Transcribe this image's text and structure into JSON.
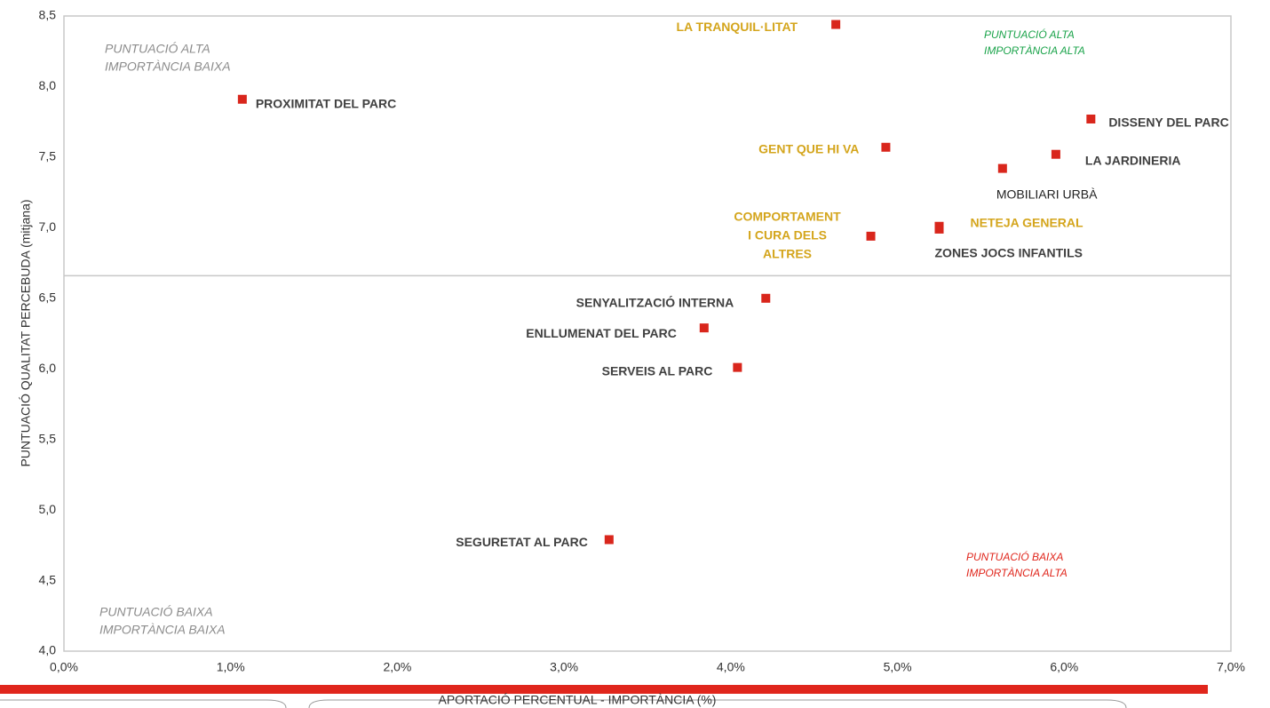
{
  "chart_data": {
    "type": "scatter",
    "x_label": "APORTACIÓ PERCENTUAL - IMPORTÀNCIA (%)",
    "y_label": "PUNTUACIÓ QUALITAT PERCEBUDA  (mitjana)",
    "color": "#d9261c",
    "x": [
      4.63,
      1.07,
      6.16,
      4.93,
      5.95,
      5.63,
      5.25,
      5.25,
      4.84,
      4.21,
      3.84,
      4.04,
      3.27
    ],
    "values": [
      8.44,
      7.91,
      7.77,
      7.57,
      7.52,
      7.42,
      7.01,
      6.99,
      6.94,
      6.5,
      6.29,
      6.01,
      4.79
    ],
    "point_labels": [
      [
        "LA TRANQUIL·LITAT"
      ],
      [
        "PROXIMITAT DEL PARC"
      ],
      [
        "DISSENY DEL PARC"
      ],
      [
        "GENT QUE HI VA"
      ],
      [
        "LA JARDINERIA"
      ],
      [
        "MOBILIARI URBÀ"
      ],
      [
        "NETEJA GENERAL"
      ],
      [
        "ZONES JOCS INFANTILS"
      ],
      [
        "COMPORTAMENT",
        "I CURA DELS",
        "ALTRES"
      ],
      [
        "SENYALITZACIÓ  INTERNA"
      ],
      [
        "ENLLUMENAT DEL PARC"
      ],
      [
        "SERVEIS  AL PARC"
      ],
      [
        "SEGURETAT AL PARC"
      ]
    ],
    "label_colors": [
      "#d4a51c",
      "#404040",
      "#404040",
      "#d4a51c",
      "#404040",
      "#222222",
      "#d4a51c",
      "#404040",
      "#d4a51c",
      "#404040",
      "#404040",
      "#404040",
      "#404040"
    ],
    "hline": 6.66,
    "annotations": [
      {
        "lines": [
          "PUNTUACIÓ ALTA",
          "IMPORTÀNCIA BAIXA"
        ],
        "color": "#8c8c8c"
      },
      {
        "lines": [
          "PUNTUACIÓ ALTA",
          "IMPORTÀNCIA ALTA"
        ],
        "color": "#1aa34a"
      },
      {
        "lines": [
          "PUNTUACIÓ BAIXA",
          "IMPORTÀNCIA ALTA"
        ],
        "color": "#e0261c"
      },
      {
        "lines": [
          "PUNTUACIÓ BAIXA",
          "IMPORTÀNCIA BAIXA"
        ],
        "color": "#8c8c8c"
      }
    ],
    "xlim": [
      0,
      7
    ],
    "xticks": [
      {
        "value": 0,
        "label": "0,0%"
      },
      {
        "value": 1,
        "label": "1,0%"
      },
      {
        "value": 2,
        "label": "2,0%"
      },
      {
        "value": 3,
        "label": "3,0%"
      },
      {
        "value": 4,
        "label": "4,0%"
      },
      {
        "value": 5,
        "label": "5,0%"
      },
      {
        "value": 6,
        "label": "6,0%"
      },
      {
        "value": 7,
        "label": "7,0%"
      }
    ],
    "ylim": [
      4,
      8.5
    ],
    "yticks": [
      {
        "value": 4,
        "label": "4,0"
      },
      {
        "value": 4.5,
        "label": "4,5"
      },
      {
        "value": 5,
        "label": "5,0"
      },
      {
        "value": 5.5,
        "label": "5,5"
      },
      {
        "value": 6,
        "label": "6,0"
      },
      {
        "value": 6.5,
        "label": "6,5"
      },
      {
        "value": 7,
        "label": "7,0"
      },
      {
        "value": 7.5,
        "label": "7,5"
      },
      {
        "value": 8,
        "label": "8,0"
      },
      {
        "value": 8.5,
        "label": "8,5"
      }
    ]
  }
}
